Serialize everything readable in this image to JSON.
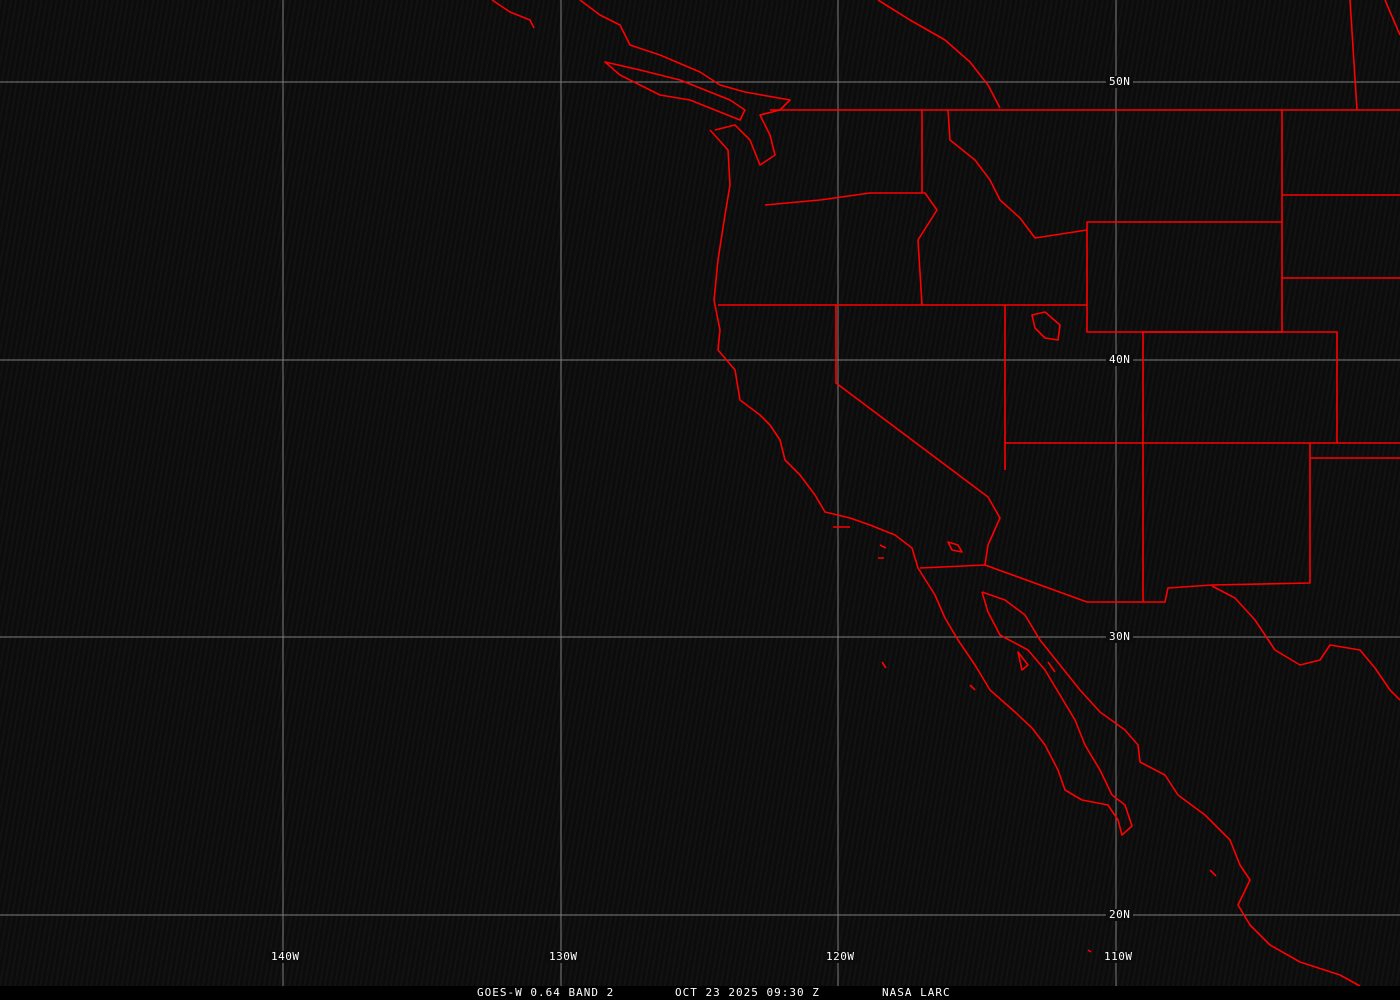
{
  "map": {
    "type": "satellite-image",
    "background_color": "#0c0c0c",
    "boundary_color": "#ff0000",
    "grid_color": "#9a9a9a",
    "longitude_labels": [
      "140W",
      "130W",
      "120W",
      "110W"
    ],
    "latitude_labels": [
      "50N",
      "40N",
      "30N",
      "20N"
    ]
  },
  "caption": {
    "satellite": "GOES-W 0.64 BAND 2",
    "datetime": "OCT 23 2025 09:30 Z",
    "source": "NASA LARC"
  }
}
